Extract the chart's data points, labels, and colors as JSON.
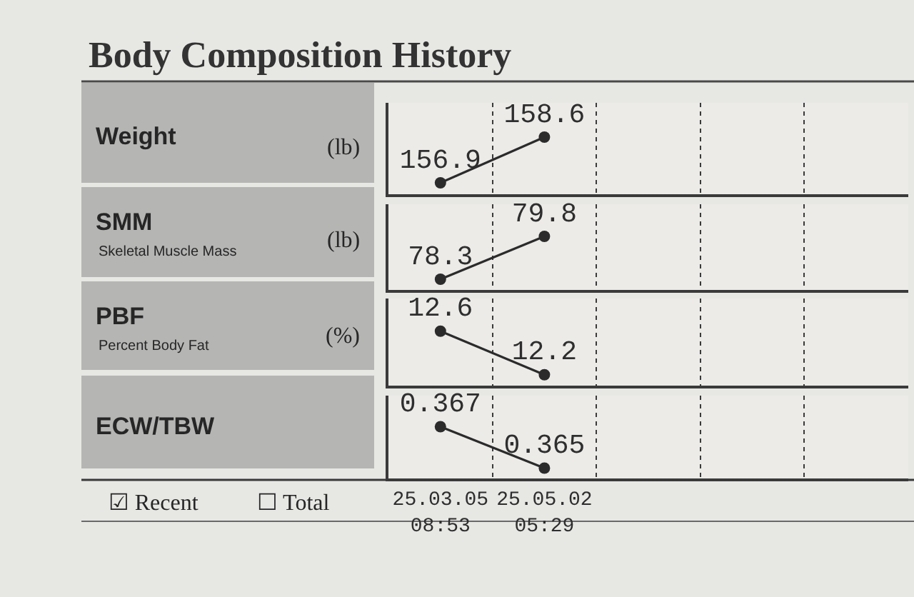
{
  "chart_data": [
    {
      "type": "line",
      "title": "Body Composition History",
      "ylabel": "(lb)",
      "categories": [
        null,
        null,
        null,
        null,
        null
      ],
      "values": [
        156.9,
        158.6,
        null,
        null,
        null
      ],
      "color": "#2b2b2b",
      "marker": "circle",
      "data_labels": true,
      "grid": "x",
      "annotations": [
        "Weight"
      ]
    },
    {
      "type": "line",
      "ylabel": "(lb)",
      "categories": [
        null,
        null,
        null,
        null,
        null
      ],
      "values": [
        78.3,
        79.8,
        null,
        null,
        null
      ],
      "color": "#2b2b2b",
      "marker": "circle",
      "data_labels": true,
      "grid": "x",
      "annotations": [
        "SMM",
        "Skeletal Muscle Mass"
      ]
    },
    {
      "type": "line",
      "ylabel": "(%)",
      "categories": [
        null,
        null,
        null,
        null,
        null
      ],
      "values": [
        12.6,
        12.2,
        null,
        null,
        null
      ],
      "color": "#2b2b2b",
      "marker": "circle",
      "data_labels": true,
      "grid": "x",
      "annotations": [
        "PBF",
        "Percent Body Fat"
      ]
    },
    {
      "type": "line",
      "categories": [
        "25.03.05\n08:53",
        "25.05.02\n05:29",
        null,
        null,
        null
      ],
      "values": [
        0.367,
        0.365,
        null,
        null,
        null
      ],
      "color": "#2b2b2b",
      "marker": "circle",
      "data_labels": true,
      "grid": "x",
      "tick_labels": "x",
      "annotations": [
        "ECW/TBW",
        "☑ Recent",
        "☐ Total"
      ]
    }
  ]
}
